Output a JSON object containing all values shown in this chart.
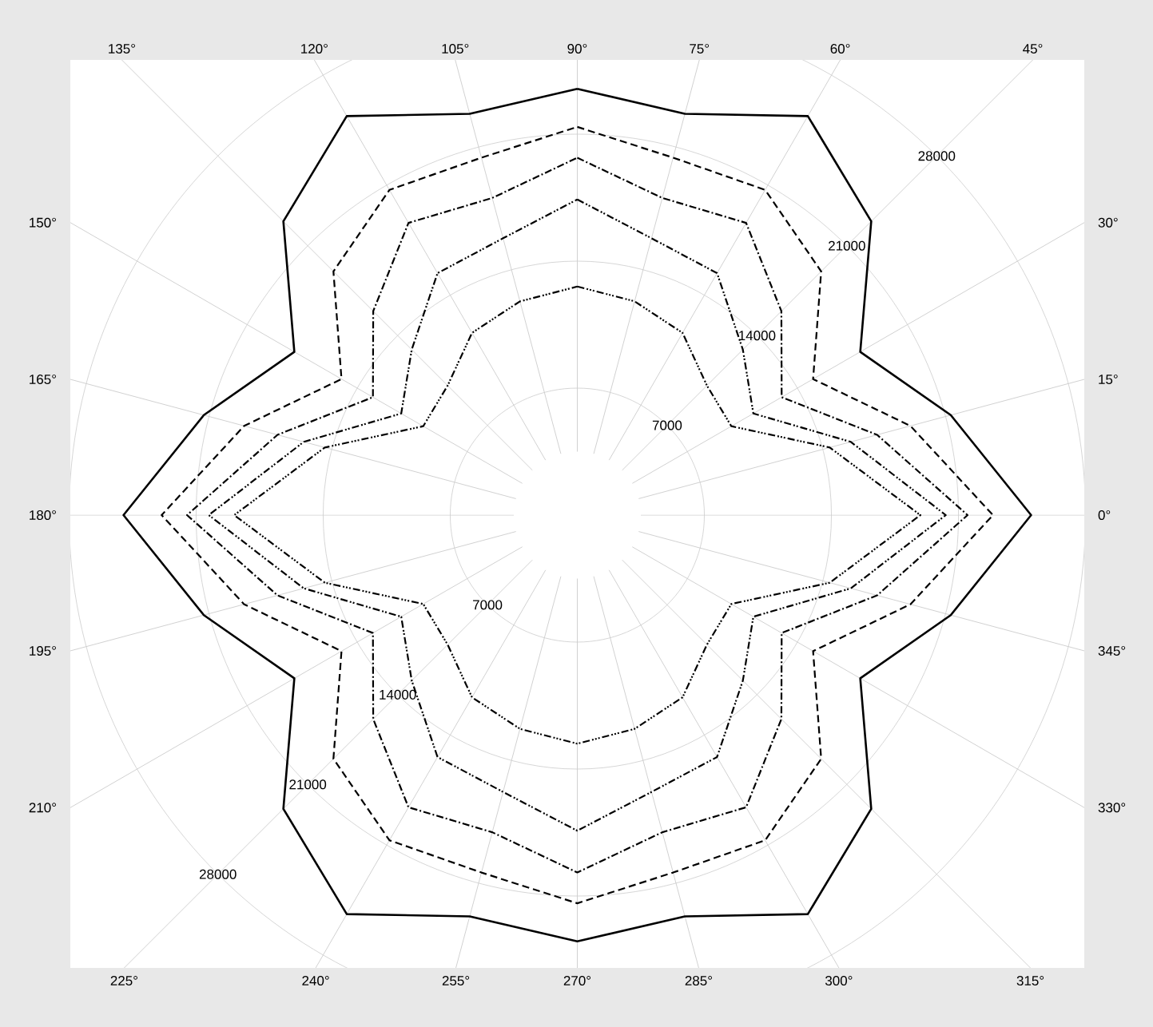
{
  "chart_data": {
    "type": "radar",
    "categories": [
      "90°",
      "75°",
      "60°",
      "45°",
      "30°",
      "15°",
      "0°",
      "345°",
      "330°",
      "315°",
      "300°",
      "285°",
      "270°",
      "255°",
      "240°",
      "225°",
      "210°",
      "195°",
      "180°",
      "165°",
      "150°",
      "135°",
      "120°",
      "105°"
    ],
    "series": [
      {
        "color": "#000000",
        "line_style": "solid",
        "values": [
          23500,
          22900,
          25400,
          22900,
          18000,
          21300,
          25000,
          21300,
          18000,
          22900,
          25400,
          22900,
          23500,
          22900,
          25400,
          22900,
          18000,
          21300,
          25000,
          21300,
          18000,
          22900,
          25400,
          22900
        ]
      },
      {
        "color": "#000000",
        "line_style": "dashed",
        "values": [
          21400,
          20400,
          20700,
          19000,
          15000,
          19000,
          22900,
          19000,
          15000,
          19000,
          20700,
          20400,
          21400,
          20400,
          20700,
          19000,
          15000,
          19000,
          22900,
          19000,
          15000,
          19000,
          20700,
          20400
        ]
      },
      {
        "color": "#000000",
        "line_style": "dashdot",
        "values": [
          19700,
          18100,
          18600,
          15900,
          13000,
          17100,
          21500,
          17100,
          13000,
          15900,
          18600,
          18100,
          19700,
          18100,
          18600,
          15900,
          13000,
          17100,
          21500,
          17100,
          13000,
          15900,
          18600,
          18100
        ]
      },
      {
        "color": "#000000",
        "line_style": "dashdotdot",
        "values": [
          17400,
          15800,
          15400,
          12900,
          11200,
          15600,
          20300,
          15600,
          11200,
          12900,
          15400,
          15800,
          17400,
          15800,
          15400,
          12900,
          11200,
          15600,
          20300,
          15600,
          11200,
          12900,
          15400,
          15800
        ]
      },
      {
        "color": "#000000",
        "line_style": "dashdotdotdot",
        "values": [
          12600,
          12200,
          11600,
          10100,
          9800,
          14400,
          18900,
          14400,
          9800,
          10100,
          11600,
          12200,
          12600,
          12200,
          11600,
          10100,
          9800,
          14400,
          18900,
          14400,
          9800,
          10100,
          11600,
          12200
        ]
      }
    ],
    "ylim": [
      0,
      28000
    ],
    "yticks": [
      7000,
      14000,
      21000,
      28000
    ],
    "grid": true,
    "annotations": [
      "7000",
      "14000",
      "21000",
      "28000"
    ]
  }
}
